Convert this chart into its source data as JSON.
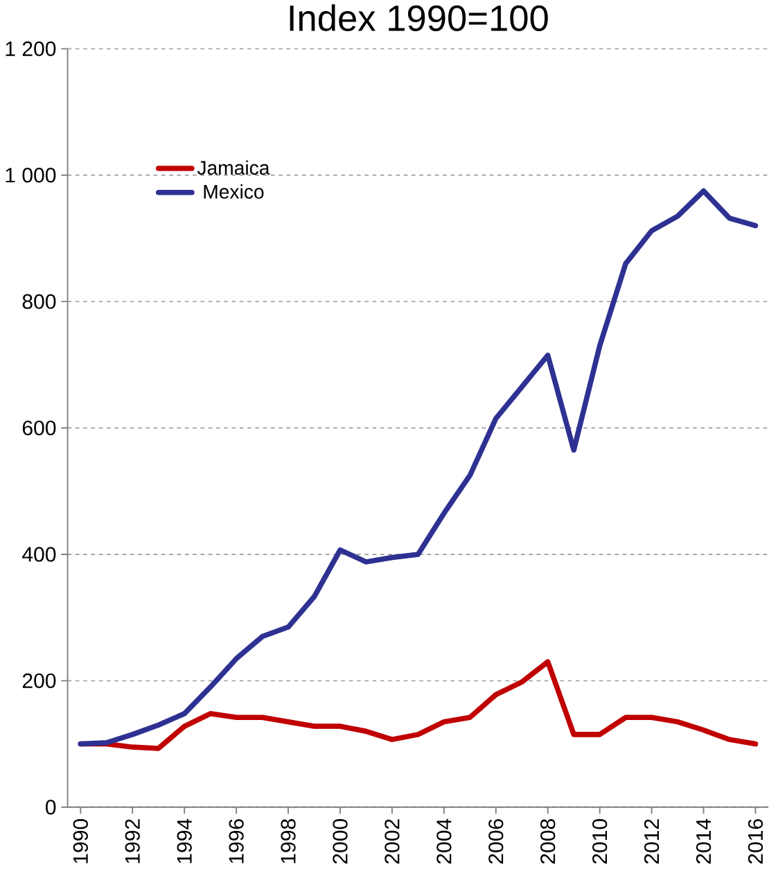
{
  "chart_data": {
    "type": "line",
    "title": "Index 1990=100",
    "x": [
      1990,
      1991,
      1992,
      1993,
      1994,
      1995,
      1996,
      1997,
      1998,
      1999,
      2000,
      2001,
      2002,
      2003,
      2004,
      2005,
      2006,
      2007,
      2008,
      2009,
      2010,
      2011,
      2012,
      2013,
      2014,
      2015,
      2016
    ],
    "series": [
      {
        "name": "Jamaica",
        "color": "#c00000",
        "values": [
          100,
          100,
          95,
          93,
          128,
          148,
          142,
          142,
          135,
          128,
          128,
          120,
          107,
          115,
          135,
          142,
          178,
          198,
          230,
          115,
          115,
          142,
          142,
          135,
          122,
          107,
          100
        ]
      },
      {
        "name": "Mexico",
        "color": "#2e3192",
        "values": [
          100,
          102,
          115,
          130,
          148,
          190,
          235,
          270,
          285,
          333,
          407,
          388,
          395,
          400,
          465,
          525,
          615,
          665,
          715,
          565,
          730,
          860,
          912,
          935,
          975,
          932,
          920
        ]
      }
    ],
    "xlim": [
      1989.5,
      2016.5
    ],
    "xticks": [
      1990,
      1992,
      1994,
      1996,
      1998,
      2000,
      2002,
      2004,
      2006,
      2008,
      2010,
      2012,
      2014,
      2016
    ],
    "ylim": [
      0,
      1200
    ],
    "yticks": [
      0,
      200,
      400,
      600,
      800,
      {
        "value": 1000,
        "label": "1 000"
      },
      {
        "value": 1200,
        "label": "1 200"
      }
    ],
    "grid": "y",
    "legend": "top left",
    "marker": "none",
    "line_style": "solid"
  }
}
